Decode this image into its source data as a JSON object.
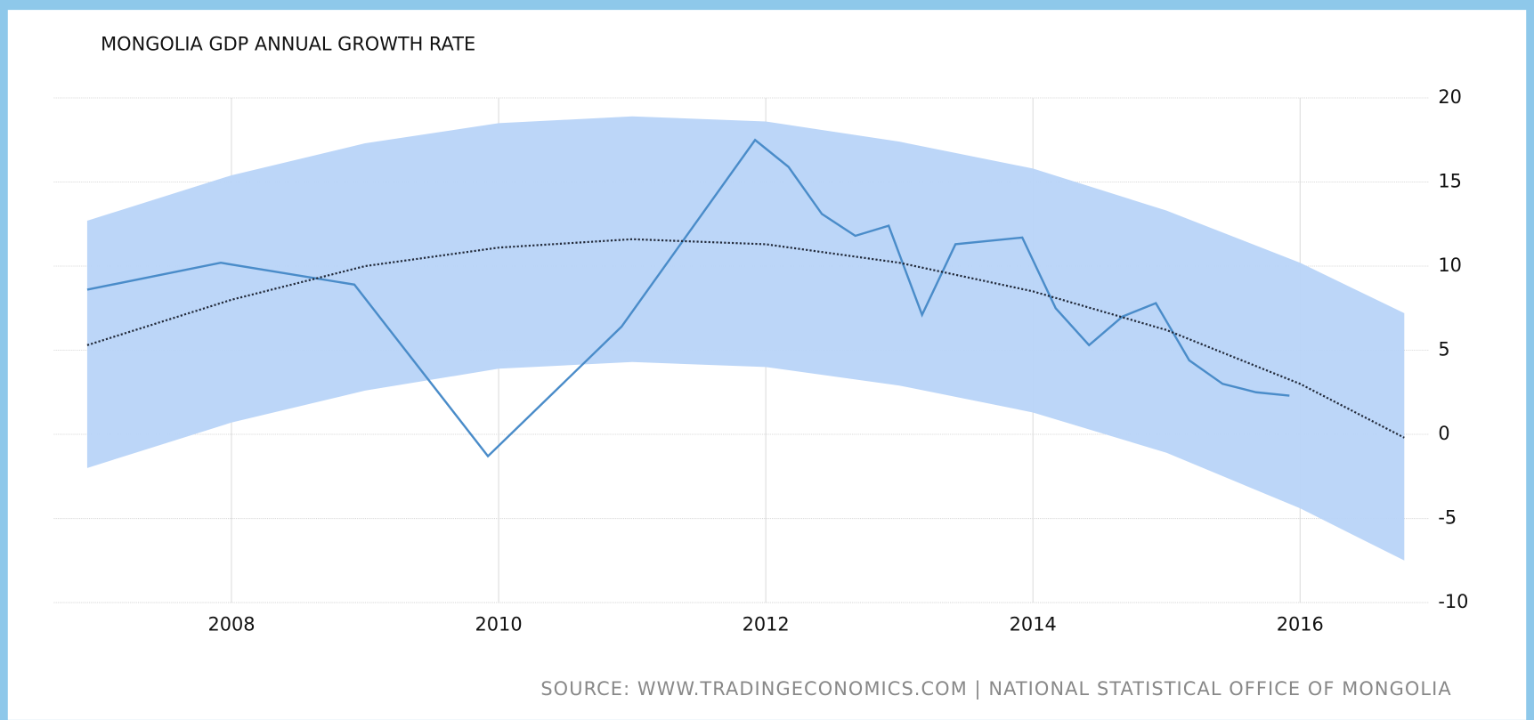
{
  "chart_data": {
    "type": "line",
    "title": "MONGOLIA GDP ANNUAL GROWTH RATE",
    "source": "SOURCE: WWW.TRADINGECONOMICS.COM | NATIONAL STATISTICAL OFFICE OF MONGOLIA",
    "xlim": [
      2006.67,
      2016.96
    ],
    "xticks": [
      2008,
      2010,
      2012,
      2014,
      2016
    ],
    "ylim": [
      -10,
      20
    ],
    "yticks": [
      20,
      15,
      10,
      5,
      0,
      -5,
      -10
    ],
    "grid": true,
    "series": [
      {
        "color": "#4a8cc9",
        "style": "solid",
        "x": [
          2006.92,
          2007.92,
          2008.92,
          2009.92,
          2010.92,
          2011.92,
          2012.17,
          2012.42,
          2012.67,
          2012.92,
          2013.17,
          2013.42,
          2013.92,
          2014.17,
          2014.42,
          2014.67,
          2014.92,
          2015.17,
          2015.42,
          2015.67,
          2015.92
        ],
        "values": [
          8.6,
          10.2,
          8.9,
          -1.3,
          6.4,
          17.5,
          15.9,
          13.1,
          11.8,
          12.4,
          7.1,
          11.3,
          11.7,
          7.5,
          5.3,
          7.0,
          7.8,
          4.4,
          3.0,
          2.5,
          2.3
        ]
      },
      {
        "color": "#222a3a",
        "style": "dotted",
        "x": [
          2006.92,
          2008,
          2009,
          2010,
          2011,
          2012,
          2013,
          2014,
          2015,
          2016,
          2016.78
        ],
        "values": [
          5.3,
          8.0,
          10.0,
          11.1,
          11.6,
          11.3,
          10.2,
          8.5,
          6.2,
          3.0,
          -0.2
        ]
      }
    ],
    "band": {
      "color": "#b8d4f8",
      "x": [
        2006.92,
        2008,
        2009,
        2010,
        2011,
        2012,
        2013,
        2014,
        2015,
        2016,
        2016.78
      ],
      "upper": [
        12.7,
        15.4,
        17.3,
        18.5,
        18.9,
        18.6,
        17.4,
        15.8,
        13.3,
        10.2,
        7.2
      ],
      "lower": [
        -2.0,
        0.7,
        2.6,
        3.9,
        4.3,
        4.0,
        2.9,
        1.3,
        -1.1,
        -4.4,
        -7.5
      ]
    }
  }
}
